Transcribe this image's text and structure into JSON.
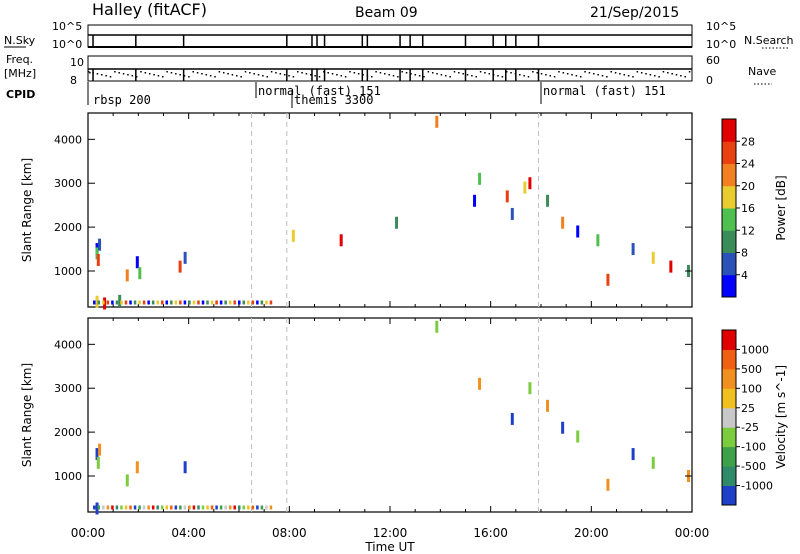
{
  "header": {
    "station": "Halley (fitACF)",
    "beam": "Beam 09",
    "date": "21/Sep/2015"
  },
  "strips": {
    "nsky_label": "N.Sky",
    "nsky_ticks": [
      "10^5",
      "10^0"
    ],
    "nsearch_label": "N.Search",
    "nsearch_ticks": [
      "10^5",
      "10^0"
    ],
    "freq_label_1": "Freq.",
    "freq_label_2": "[MHz]",
    "freq_ticks": [
      "10",
      "8"
    ],
    "nave_label": "Nave",
    "nave_ticks": [
      "60",
      "0"
    ],
    "cpid_label": "CPID",
    "cpid_segments": [
      {
        "label": "rbsp 200",
        "start_hour": 0
      },
      {
        "label": "normal (fast) 151",
        "start_hour": 6.5
      },
      {
        "label": "themis 3300",
        "start_hour": 7.9
      },
      {
        "label": "normal (fast) 151",
        "start_hour": 17.9
      }
    ]
  },
  "chart_data": [
    {
      "type": "scatter",
      "title": "",
      "xlabel": "Time UT",
      "ylabel": "Slant Range [km]",
      "xlim": [
        0,
        24
      ],
      "ylim": [
        180,
        4600
      ],
      "x_tick_labels": [
        "00:00",
        "04:00",
        "08:00",
        "12:00",
        "16:00",
        "20:00",
        "00:00"
      ],
      "y_tick_labels": [
        "1000",
        "2000",
        "3000",
        "4000"
      ],
      "y_ticks": [
        1000,
        2000,
        3000,
        4000
      ],
      "mode_change_hours": [
        6.5,
        7.9,
        17.9
      ],
      "colorbar": {
        "label": "Power [dB]",
        "tick_labels": [
          "4",
          "8",
          "12",
          "16",
          "20",
          "24",
          "28"
        ],
        "colors": [
          "#0000ff",
          "#2a52b8",
          "#3c8c5a",
          "#4fc04f",
          "#e8cc30",
          "#f08020",
          "#e84010",
          "#e00000"
        ]
      },
      "series": [
        {
          "values": [
            [
              0.3,
              1500
            ],
            [
              0.3,
              1400
            ],
            [
              0.35,
              1250
            ],
            [
              0.4,
              1600
            ],
            [
              0.3,
              300
            ],
            [
              0.6,
              260
            ],
            [
              1.2,
              320
            ],
            [
              1.5,
              900
            ],
            [
              1.9,
              1200
            ],
            [
              2.0,
              950
            ],
            [
              3.6,
              1100
            ],
            [
              3.8,
              1300
            ],
            [
              8.1,
              1800
            ],
            [
              10.0,
              1700
            ],
            [
              12.2,
              2100
            ],
            [
              13.8,
              4400
            ],
            [
              15.3,
              2600
            ],
            [
              15.5,
              3100
            ],
            [
              16.6,
              2700
            ],
            [
              16.8,
              2300
            ],
            [
              17.3,
              2900
            ],
            [
              17.5,
              3000
            ],
            [
              18.2,
              2600
            ],
            [
              18.8,
              2100
            ],
            [
              19.4,
              1900
            ],
            [
              20.2,
              1700
            ],
            [
              20.6,
              800
            ],
            [
              21.6,
              1500
            ],
            [
              22.4,
              1300
            ],
            [
              23.1,
              1100
            ],
            [
              23.8,
              1000
            ]
          ]
        }
      ]
    },
    {
      "type": "scatter",
      "title": "",
      "xlabel": "Time UT",
      "ylabel": "Slant Range [km]",
      "xlim": [
        0,
        24
      ],
      "ylim": [
        180,
        4600
      ],
      "x_tick_labels": [
        "00:00",
        "04:00",
        "08:00",
        "12:00",
        "16:00",
        "20:00",
        "00:00"
      ],
      "y_tick_labels": [
        "1000",
        "2000",
        "3000",
        "4000"
      ],
      "y_ticks": [
        1000,
        2000,
        3000,
        4000
      ],
      "mode_change_hours": [
        6.5,
        7.9,
        17.9
      ],
      "colorbar": {
        "label": "Velocity [m s^-1]",
        "tick_labels": [
          "1000",
          "500",
          "100",
          "25",
          "-25",
          "-100",
          "-500",
          "-1000"
        ],
        "colors": [
          "#1e40c8",
          "#2f8a6a",
          "#3ea04a",
          "#7ccc40",
          "#c8c8c8",
          "#f0c020",
          "#f09020",
          "#f06010",
          "#e00000"
        ]
      },
      "series": [
        {
          "values": [
            [
              0.3,
              1500
            ],
            [
              0.35,
              1300
            ],
            [
              0.4,
              1600
            ],
            [
              0.3,
              260
            ],
            [
              1.5,
              900
            ],
            [
              1.9,
              1200
            ],
            [
              3.8,
              1200
            ],
            [
              13.8,
              4400
            ],
            [
              15.5,
              3100
            ],
            [
              16.8,
              2300
            ],
            [
              17.5,
              3000
            ],
            [
              18.2,
              2600
            ],
            [
              18.8,
              2100
            ],
            [
              19.4,
              1900
            ],
            [
              20.6,
              800
            ],
            [
              21.6,
              1500
            ],
            [
              22.4,
              1300
            ],
            [
              23.8,
              1000
            ]
          ]
        }
      ]
    }
  ]
}
